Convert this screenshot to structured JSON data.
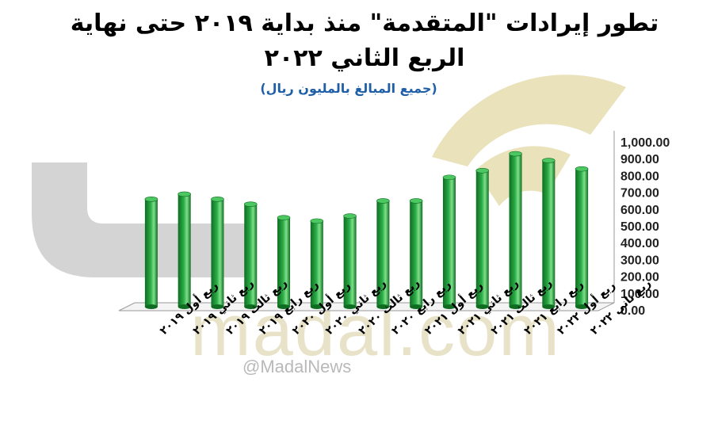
{
  "title": {
    "line1": "تطور إيرادات \"المتقدمة\" منذ بداية ٢٠١٩ حتى نهاية",
    "line2": "الربع الثاني ٢٠٢٢",
    "subtitle": "(جميع المبالغ بالمليون ريال)"
  },
  "watermark": {
    "brand": "madal.com",
    "handle": "@MadalNews"
  },
  "colors": {
    "bar": "#2bac47",
    "bar_dark": "#0f6d22",
    "bar_light": "#7ee08a",
    "subtitle": "#1f5fa8",
    "watermark_gray": "#c9c9c9",
    "watermark_gold": "#e8dfb4"
  },
  "chart_data": {
    "type": "bar",
    "categories": [
      "ربع أول ٢٠١٩",
      "ربع ثاني ٢٠١٩",
      "ربع ثالث ٢٠١٩",
      "ربع رابع ٢٠١٩",
      "ربع أول ٢٠٢٠",
      "ربع ثاني ٢٠٢٠",
      "ربع ثالث ٢٠٢٠",
      "ربع رابع ٢٠٢٠",
      "ربع أول ٢٠٢١",
      "ربع ثاني ٢٠٢١",
      "ربع ثالث ٢٠٢١",
      "ربع رابع ٢٠٢١",
      "ربع أول ٢٠٢٢",
      "ربع ثاني ٢٠٢٢"
    ],
    "values": [
      640,
      670,
      640,
      610,
      530,
      510,
      540,
      630,
      630,
      770,
      810,
      910,
      870,
      820
    ],
    "ylim": [
      0,
      1000
    ],
    "yticks": [
      "0.00",
      "100.00",
      "200.00",
      "300.00",
      "400.00",
      "500.00",
      "600.00",
      "700.00",
      "800.00",
      "900.00",
      "1,000.00"
    ],
    "grid": false,
    "legend": "none",
    "axis_position": "right"
  }
}
